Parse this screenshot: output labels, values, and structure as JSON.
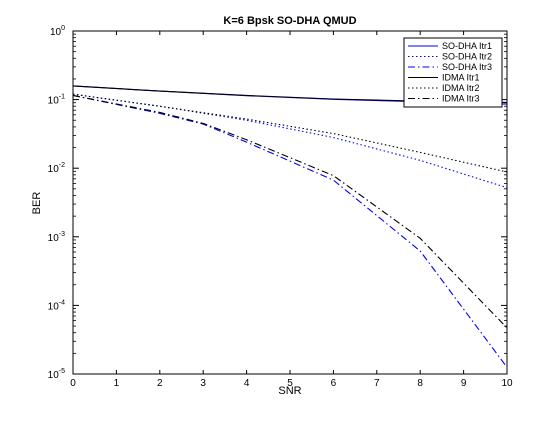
{
  "chart_data": {
    "type": "line",
    "title": "K=6 Bpsk SO-DHA QMUD",
    "xlabel": "SNR",
    "ylabel": "BER",
    "xlim": [
      0,
      10
    ],
    "ylim": [
      1e-05,
      1
    ],
    "yscale": "log",
    "grid": false,
    "legend_position": "top-right",
    "x_ticks": [
      "0",
      "1",
      "2",
      "3",
      "4",
      "5",
      "6",
      "7",
      "8",
      "9",
      "10"
    ],
    "y_ticks": [
      {
        "value": 1,
        "base": "10",
        "exp": "0"
      },
      {
        "value": 0.1,
        "base": "10",
        "exp": "-1"
      },
      {
        "value": 0.01,
        "base": "10",
        "exp": "-2"
      },
      {
        "value": 0.001,
        "base": "10",
        "exp": "-3"
      },
      {
        "value": 0.0001,
        "base": "10",
        "exp": "-4"
      },
      {
        "value": 1e-05,
        "base": "10",
        "exp": "-5"
      }
    ],
    "series": [
      {
        "name": "SO-DHA Itr1",
        "color": "#0000ff",
        "dash": "solid",
        "x": [
          0,
          2,
          4,
          6,
          8,
          10
        ],
        "y": [
          0.158,
          0.133,
          0.114,
          0.101,
          0.093,
          0.086
        ]
      },
      {
        "name": "SO-DHA Itr2",
        "color": "#0000ff",
        "dash": "dotted",
        "x": [
          0,
          2,
          4,
          6,
          8,
          10
        ],
        "y": [
          0.12,
          0.08,
          0.05,
          0.028,
          0.013,
          0.0052
        ]
      },
      {
        "name": "SO-DHA Itr3",
        "color": "#0000ff",
        "dash": "dashdot",
        "x": [
          0,
          2,
          3,
          4,
          6,
          8,
          10
        ],
        "y": [
          0.115,
          0.063,
          0.044,
          0.024,
          0.0067,
          0.00062,
          1.25e-05
        ]
      },
      {
        "name": "IDMA Itr1",
        "color": "#000000",
        "dash": "solid",
        "x": [
          0,
          2,
          4,
          6,
          8,
          10
        ],
        "y": [
          0.158,
          0.133,
          0.115,
          0.102,
          0.095,
          0.091
        ]
      },
      {
        "name": "IDMA Itr2",
        "color": "#000000",
        "dash": "dotted",
        "x": [
          0,
          2,
          4,
          6,
          8,
          10
        ],
        "y": [
          0.12,
          0.08,
          0.052,
          0.032,
          0.017,
          0.0088
        ]
      },
      {
        "name": "IDMA Itr3",
        "color": "#000000",
        "dash": "dashdot",
        "x": [
          0,
          2,
          3,
          4,
          6,
          8,
          10
        ],
        "y": [
          0.115,
          0.065,
          0.045,
          0.026,
          0.0078,
          0.00095,
          4.7e-05
        ]
      }
    ]
  }
}
